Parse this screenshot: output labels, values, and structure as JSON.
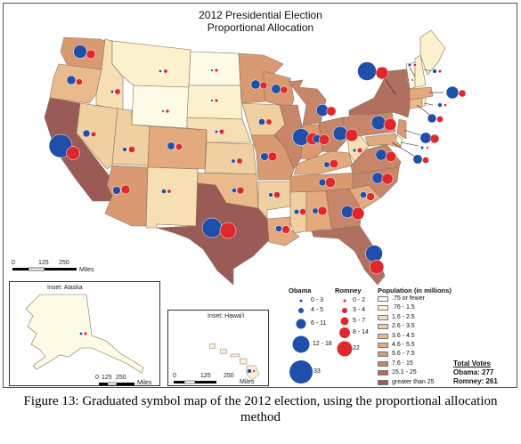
{
  "title_line1": "2012 Presidential Election",
  "title_line2": "Proportional Allocation",
  "caption_line1": "Figure 13: Graduated symbol map of the 2012 election, using the proportional allocation",
  "caption_line2": "method",
  "scale_main": {
    "t0": "0",
    "t1": "125",
    "t2": "250",
    "unit": "Miles"
  },
  "inset_alaska": {
    "title": "Inset: Alaska",
    "t0": "0",
    "t1": "125",
    "t2": "250",
    "unit": "Miles"
  },
  "inset_hawaii": {
    "title": "Inset: Hawai'i",
    "t0": "0",
    "t1": "125",
    "t2": "250",
    "unit": "Miles"
  },
  "legend": {
    "obama_title": "Obama",
    "romney_title": "Romney",
    "population_title": "Population (in millions)",
    "obama_classes": [
      "0 - 3",
      "4 - 5",
      "6 - 11",
      "12 - 18",
      "33"
    ],
    "romney_classes": [
      "0 - 2",
      "3 - 4",
      "5 - 7",
      "8 - 14",
      "22"
    ],
    "population_classes": [
      ".75 or fewer",
      ".76 - 1.5",
      "1.6 - 2.5",
      "2.6 - 3.5",
      "3.6 - 4.5",
      "4.6 - 5.5",
      "5.6 - 7.5",
      "7.6 - 15",
      "15.1 - 25",
      "greater than 25"
    ]
  },
  "colors": {
    "obama": "#1f4fa8",
    "romney": "#e0272c",
    "population": [
      "#fdfbe6",
      "#fbf1cc",
      "#f6dfb2",
      "#f0cfa0",
      "#e9bb8c",
      "#e3aa7e",
      "#d99a72",
      "#c7856a",
      "#b06f5f",
      "#9a5a55"
    ],
    "border": "#8a7060"
  },
  "totals": {
    "heading": "Total Votes",
    "obama": "Obama: 277",
    "romney": "Romney: 261"
  }
}
